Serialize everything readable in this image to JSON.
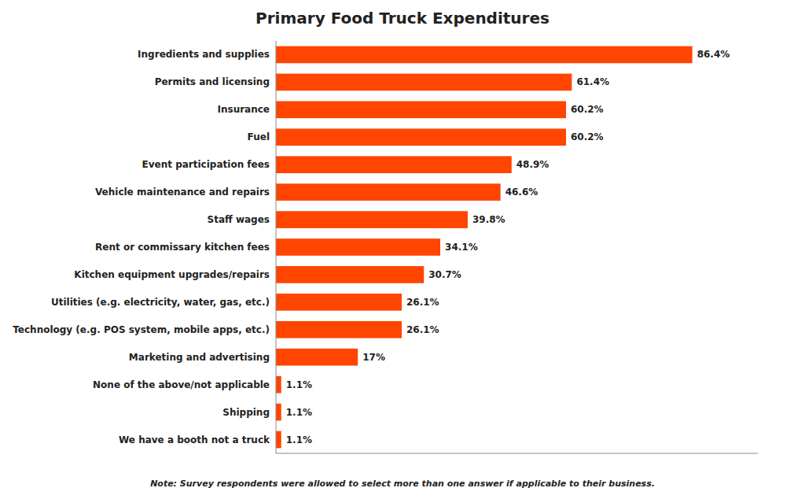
{
  "chart_data": {
    "type": "bar",
    "orientation": "horizontal",
    "title": "Primary Food Truck Expenditures",
    "categories": [
      "We have a booth not a truck",
      "Shipping",
      "None of the above/not applicable",
      "Marketing and advertising",
      "Technology (e.g. POS system, mobile apps, etc.)",
      "Utilities (e.g. electricity, water, gas, etc.)",
      "Kitchen equipment upgrades/repairs",
      "Rent or commissary kitchen fees",
      "Staff wages",
      "Vehicle maintenance and repairs",
      "Event participation fees",
      "Fuel",
      "Insurance",
      "Permits and licensing",
      "Ingredients and supplies"
    ],
    "values": [
      1.1,
      1.1,
      1.1,
      17.0,
      26.1,
      26.1,
      30.7,
      34.1,
      39.8,
      46.6,
      48.9,
      60.2,
      60.2,
      61.4,
      86.4
    ],
    "value_labels": [
      "1.1%",
      "1.1%",
      "1.1%",
      "17%",
      "26.1%",
      "26.1%",
      "30.7%",
      "34.1%",
      "39.8%",
      "46.6%",
      "48.9%",
      "60.2%",
      "60.2%",
      "61.4%",
      "86.4%"
    ],
    "color": "#FF4500",
    "xlim": [
      0,
      100
    ],
    "xticks": [],
    "grid": false,
    "data_labels": true,
    "tick_labels": "y",
    "annotations": [
      "Note: Survey respondents were allowed to select more than one answer if applicable to their business."
    ]
  }
}
